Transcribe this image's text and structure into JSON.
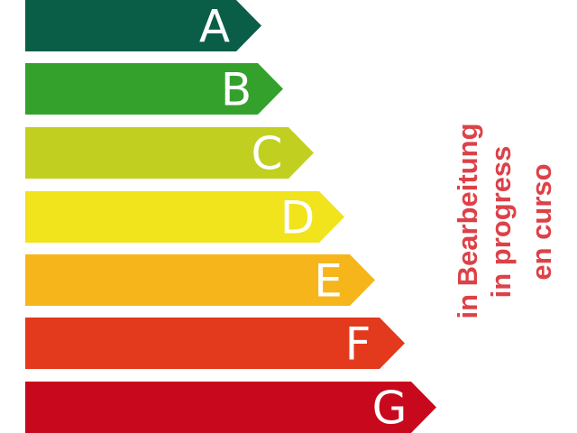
{
  "classes": [
    {
      "label": "A",
      "color": "#0a5e48"
    },
    {
      "label": "B",
      "color": "#35a12d"
    },
    {
      "label": "C",
      "color": "#c1d020"
    },
    {
      "label": "D",
      "color": "#f1e31c"
    },
    {
      "label": "E",
      "color": "#f6b51b"
    },
    {
      "label": "F",
      "color": "#e3391c"
    },
    {
      "label": "G",
      "color": "#c8081d"
    }
  ],
  "status": {
    "lines": [
      "in Bearbeitung",
      "in progress",
      "en curso"
    ],
    "color": "#dd4148"
  }
}
